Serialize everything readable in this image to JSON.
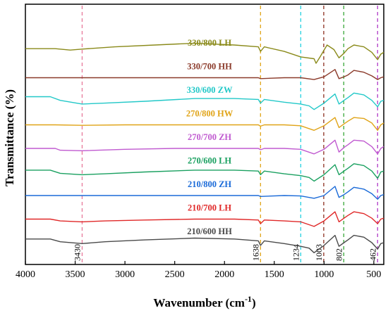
{
  "chart_data": {
    "type": "line",
    "xlabel": "Wavenumber (cm",
    "xlabel_sup": "-1",
    "xlabel_close": ")",
    "ylabel": "Transmittance (%)",
    "xlim": [
      4000,
      400
    ],
    "x_reversed": true,
    "xticks": [
      4000,
      3500,
      3000,
      2500,
      2000,
      1500,
      1000,
      500
    ],
    "yticks_shown": false,
    "grid": false,
    "legend": "none",
    "markers": [
      {
        "wavenumber": 3430,
        "label": "3430",
        "color": "#e8789a"
      },
      {
        "wavenumber": 1638,
        "label": "1638",
        "color": "#e0a418"
      },
      {
        "wavenumber": 1234,
        "label": "1234",
        "color": "#22d0e0"
      },
      {
        "wavenumber": 1003,
        "label": "1003",
        "color": "#8b2d1e"
      },
      {
        "wavenumber": 802,
        "label": "802",
        "color": "#3aa83a"
      },
      {
        "wavenumber": 462,
        "label": "462",
        "color": "#b03ac8"
      }
    ],
    "series": [
      {
        "name": "330/800 LH",
        "color": "#8a8a1a",
        "offset": 9,
        "points": [
          [
            4000,
            0.6
          ],
          [
            3700,
            0.6
          ],
          [
            3550,
            0.45
          ],
          [
            3430,
            0.55
          ],
          [
            3100,
            0.8
          ],
          [
            2700,
            1.0
          ],
          [
            2300,
            1.2
          ],
          [
            1900,
            1.0
          ],
          [
            1660,
            0.8
          ],
          [
            1638,
            0.3
          ],
          [
            1600,
            0.8
          ],
          [
            1400,
            0.3
          ],
          [
            1234,
            -0.3
          ],
          [
            1100,
            -0.5
          ],
          [
            1080,
            -1.0
          ],
          [
            1040,
            -0.3
          ],
          [
            970,
            1.0
          ],
          [
            900,
            0.5
          ],
          [
            850,
            -0.4
          ],
          [
            800,
            0.1
          ],
          [
            760,
            0.6
          ],
          [
            700,
            1.0
          ],
          [
            600,
            0.8
          ],
          [
            520,
            0.2
          ],
          [
            462,
            -0.6
          ],
          [
            430,
            0.0
          ],
          [
            400,
            0.2
          ]
        ]
      },
      {
        "name": "330/700 HH",
        "color": "#8b3a2a",
        "offset": 8,
        "points": [
          [
            4000,
            0.0
          ],
          [
            3700,
            0.0
          ],
          [
            3430,
            0.0
          ],
          [
            3000,
            0.0
          ],
          [
            2500,
            0.0
          ],
          [
            2000,
            0.0
          ],
          [
            1660,
            0.0
          ],
          [
            1638,
            -0.1
          ],
          [
            1400,
            0.0
          ],
          [
            1234,
            0.0
          ],
          [
            1100,
            -0.2
          ],
          [
            1000,
            0.1
          ],
          [
            890,
            0.9
          ],
          [
            850,
            -0.1
          ],
          [
            800,
            0.1
          ],
          [
            760,
            0.3
          ],
          [
            700,
            0.8
          ],
          [
            600,
            0.6
          ],
          [
            520,
            0.2
          ],
          [
            462,
            -0.2
          ],
          [
            430,
            0.0
          ],
          [
            400,
            0.1
          ]
        ]
      },
      {
        "name": "330/600 ZW",
        "color": "#22c8c8",
        "offset": 7,
        "points": [
          [
            4000,
            0.5
          ],
          [
            3750,
            0.5
          ],
          [
            3650,
            0.1
          ],
          [
            3430,
            -0.3
          ],
          [
            3200,
            -0.2
          ],
          [
            2800,
            0.0
          ],
          [
            2300,
            0.3
          ],
          [
            1900,
            0.3
          ],
          [
            1660,
            0.2
          ],
          [
            1638,
            -0.2
          ],
          [
            1600,
            0.2
          ],
          [
            1400,
            -0.1
          ],
          [
            1234,
            -0.3
          ],
          [
            1150,
            -0.5
          ],
          [
            1100,
            -0.9
          ],
          [
            1000,
            -0.2
          ],
          [
            890,
            0.8
          ],
          [
            850,
            -0.3
          ],
          [
            800,
            0.1
          ],
          [
            760,
            0.4
          ],
          [
            700,
            0.9
          ],
          [
            600,
            0.7
          ],
          [
            520,
            0.1
          ],
          [
            462,
            -0.6
          ],
          [
            430,
            0.0
          ],
          [
            400,
            0.1
          ]
        ]
      },
      {
        "name": "270/800 HW",
        "color": "#e0a418",
        "offset": 6,
        "points": [
          [
            4000,
            0.0
          ],
          [
            3700,
            0.0
          ],
          [
            3430,
            -0.05
          ],
          [
            3000,
            0.0
          ],
          [
            2500,
            0.0
          ],
          [
            2000,
            0.0
          ],
          [
            1660,
            0.0
          ],
          [
            1638,
            -0.15
          ],
          [
            1600,
            0.0
          ],
          [
            1400,
            0.0
          ],
          [
            1234,
            -0.1
          ],
          [
            1100,
            -0.6
          ],
          [
            1000,
            -0.1
          ],
          [
            890,
            0.8
          ],
          [
            850,
            -0.3
          ],
          [
            800,
            0.1
          ],
          [
            760,
            0.4
          ],
          [
            700,
            0.8
          ],
          [
            600,
            0.7
          ],
          [
            520,
            0.2
          ],
          [
            462,
            -0.6
          ],
          [
            430,
            0.0
          ],
          [
            400,
            0.2
          ]
        ]
      },
      {
        "name": "270/700 ZH",
        "color": "#c05ad0",
        "offset": 5,
        "points": [
          [
            4000,
            0.0
          ],
          [
            3700,
            0.0
          ],
          [
            3650,
            -0.2
          ],
          [
            3430,
            -0.25
          ],
          [
            3000,
            -0.1
          ],
          [
            2500,
            0.0
          ],
          [
            2000,
            0.0
          ],
          [
            1660,
            0.0
          ],
          [
            1638,
            -0.15
          ],
          [
            1600,
            0.0
          ],
          [
            1400,
            0.0
          ],
          [
            1234,
            -0.1
          ],
          [
            1100,
            -0.6
          ],
          [
            1000,
            -0.1
          ],
          [
            890,
            0.9
          ],
          [
            850,
            -0.4
          ],
          [
            800,
            0.1
          ],
          [
            760,
            0.4
          ],
          [
            700,
            0.9
          ],
          [
            600,
            0.8
          ],
          [
            520,
            0.2
          ],
          [
            462,
            -0.6
          ],
          [
            430,
            0.0
          ],
          [
            400,
            0.2
          ]
        ]
      },
      {
        "name": "270/600 LH",
        "color": "#1aa060",
        "offset": 4,
        "points": [
          [
            4000,
            0.2
          ],
          [
            3750,
            0.2
          ],
          [
            3650,
            -0.15
          ],
          [
            3430,
            -0.3
          ],
          [
            3200,
            -0.2
          ],
          [
            2800,
            0.0
          ],
          [
            2300,
            0.2
          ],
          [
            1900,
            0.2
          ],
          [
            1660,
            0.1
          ],
          [
            1638,
            -0.3
          ],
          [
            1600,
            0.1
          ],
          [
            1400,
            -0.2
          ],
          [
            1234,
            -0.4
          ],
          [
            1150,
            -0.6
          ],
          [
            1100,
            -1.0
          ],
          [
            1000,
            -0.3
          ],
          [
            890,
            0.8
          ],
          [
            850,
            -0.3
          ],
          [
            800,
            0.1
          ],
          [
            760,
            0.4
          ],
          [
            700,
            0.9
          ],
          [
            600,
            0.7
          ],
          [
            520,
            0.1
          ],
          [
            462,
            -0.7
          ],
          [
            430,
            0.0
          ],
          [
            400,
            0.1
          ]
        ]
      },
      {
        "name": "210/800 ZH",
        "color": "#1a6ad8",
        "offset": 3,
        "points": [
          [
            4000,
            0.0
          ],
          [
            3700,
            0.0
          ],
          [
            3430,
            0.0
          ],
          [
            3000,
            0.0
          ],
          [
            2500,
            0.0
          ],
          [
            2000,
            0.0
          ],
          [
            1660,
            0.0
          ],
          [
            1638,
            -0.1
          ],
          [
            1400,
            0.0
          ],
          [
            1234,
            -0.05
          ],
          [
            1100,
            -0.3
          ],
          [
            1000,
            0.0
          ],
          [
            890,
            1.0
          ],
          [
            850,
            -0.2
          ],
          [
            800,
            0.1
          ],
          [
            760,
            0.4
          ],
          [
            700,
            0.9
          ],
          [
            600,
            0.7
          ],
          [
            520,
            0.2
          ],
          [
            462,
            -0.4
          ],
          [
            430,
            0.0
          ],
          [
            400,
            0.1
          ]
        ]
      },
      {
        "name": "210/700 LH",
        "color": "#e02828",
        "offset": 2,
        "points": [
          [
            4000,
            0.0
          ],
          [
            3750,
            0.0
          ],
          [
            3650,
            -0.2
          ],
          [
            3430,
            -0.3
          ],
          [
            3200,
            -0.2
          ],
          [
            2800,
            -0.1
          ],
          [
            2300,
            0.0
          ],
          [
            1900,
            0.0
          ],
          [
            1660,
            -0.1
          ],
          [
            1638,
            -0.5
          ],
          [
            1600,
            -0.1
          ],
          [
            1400,
            -0.2
          ],
          [
            1234,
            -0.3
          ],
          [
            1100,
            -0.8
          ],
          [
            1000,
            -0.2
          ],
          [
            890,
            0.8
          ],
          [
            850,
            -0.3
          ],
          [
            800,
            0.1
          ],
          [
            760,
            0.4
          ],
          [
            700,
            0.8
          ],
          [
            600,
            0.6
          ],
          [
            520,
            0.1
          ],
          [
            462,
            -0.5
          ],
          [
            430,
            0.0
          ],
          [
            400,
            0.1
          ]
        ]
      },
      {
        "name": "210/600 HH",
        "color": "#4a4a4a",
        "offset": 1,
        "points": [
          [
            4000,
            0.4
          ],
          [
            3750,
            0.4
          ],
          [
            3650,
            0.1
          ],
          [
            3430,
            -0.1
          ],
          [
            3200,
            0.1
          ],
          [
            2800,
            0.3
          ],
          [
            2300,
            0.5
          ],
          [
            1900,
            0.4
          ],
          [
            1660,
            0.2
          ],
          [
            1638,
            -0.3
          ],
          [
            1600,
            0.2
          ],
          [
            1400,
            -0.1
          ],
          [
            1234,
            -0.4
          ],
          [
            1150,
            -0.6
          ],
          [
            1100,
            -1.1
          ],
          [
            1000,
            -0.3
          ],
          [
            890,
            0.8
          ],
          [
            850,
            -0.4
          ],
          [
            800,
            0.0
          ],
          [
            760,
            0.3
          ],
          [
            700,
            0.8
          ],
          [
            600,
            0.6
          ],
          [
            520,
            0.0
          ],
          [
            462,
            -0.7
          ],
          [
            430,
            -0.1
          ],
          [
            400,
            0.0
          ]
        ]
      }
    ]
  }
}
